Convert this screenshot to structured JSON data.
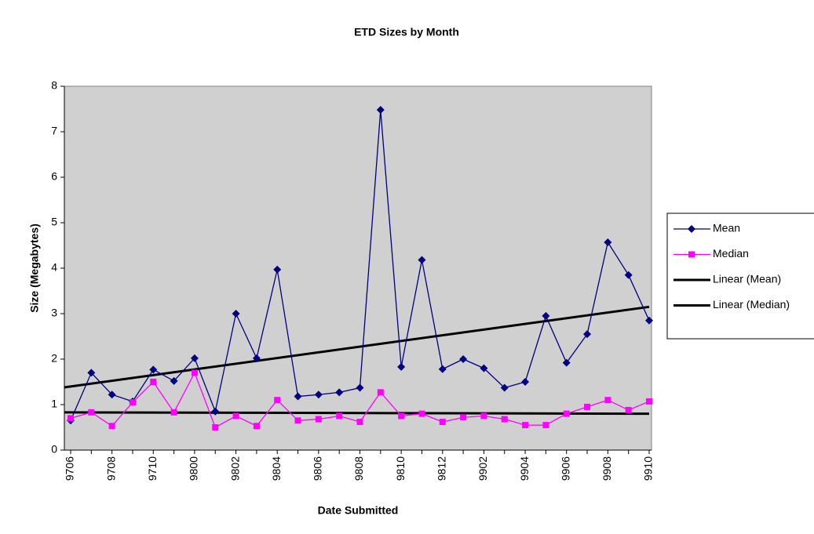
{
  "chart_data": {
    "type": "line",
    "title": "ETD Sizes by Month",
    "y_label": "Size (Megabytes)",
    "x_label": "Date Submitted",
    "categories": [
      "9706",
      null,
      "9708",
      null,
      "9710",
      null,
      "9800",
      null,
      "9802",
      null,
      "9804",
      null,
      "9806",
      null,
      "9808",
      null,
      "9810",
      null,
      "9812",
      null,
      "9902",
      null,
      "9904",
      null,
      "9906",
      null,
      "9908",
      null,
      "9910"
    ],
    "series": [
      {
        "name": "Mean",
        "color": "#000080",
        "marker": "diamond",
        "values": [
          0.65,
          1.7,
          1.22,
          1.07,
          1.77,
          1.52,
          2.02,
          0.85,
          3.0,
          2.02,
          3.97,
          1.18,
          1.22,
          1.27,
          1.37,
          7.48,
          1.83,
          4.18,
          1.78,
          2.0,
          1.8,
          1.37,
          1.5,
          2.95,
          1.92,
          2.55,
          4.57,
          3.85,
          2.85
        ]
      },
      {
        "name": "Median",
        "color": "#ff00ff",
        "marker": "square",
        "values": [
          0.7,
          0.83,
          0.53,
          1.05,
          1.5,
          0.83,
          1.7,
          0.5,
          0.75,
          0.53,
          1.1,
          0.65,
          0.68,
          0.75,
          0.62,
          1.27,
          0.75,
          0.8,
          0.62,
          0.72,
          0.75,
          0.68,
          0.55,
          0.55,
          0.8,
          0.95,
          1.1,
          0.88,
          1.07
        ]
      }
    ],
    "trendlines": [
      {
        "name": "Linear (Mean)",
        "color": "#000000",
        "values": [
          1.38,
          3.15
        ]
      },
      {
        "name": "Linear (Median)",
        "color": "#000000",
        "values": [
          0.83,
          0.8
        ]
      }
    ],
    "ylim": [
      0,
      8
    ],
    "yticks": [
      0,
      1,
      2,
      3,
      4,
      5,
      6,
      7,
      8
    ],
    "grid": false,
    "legend": "right"
  }
}
